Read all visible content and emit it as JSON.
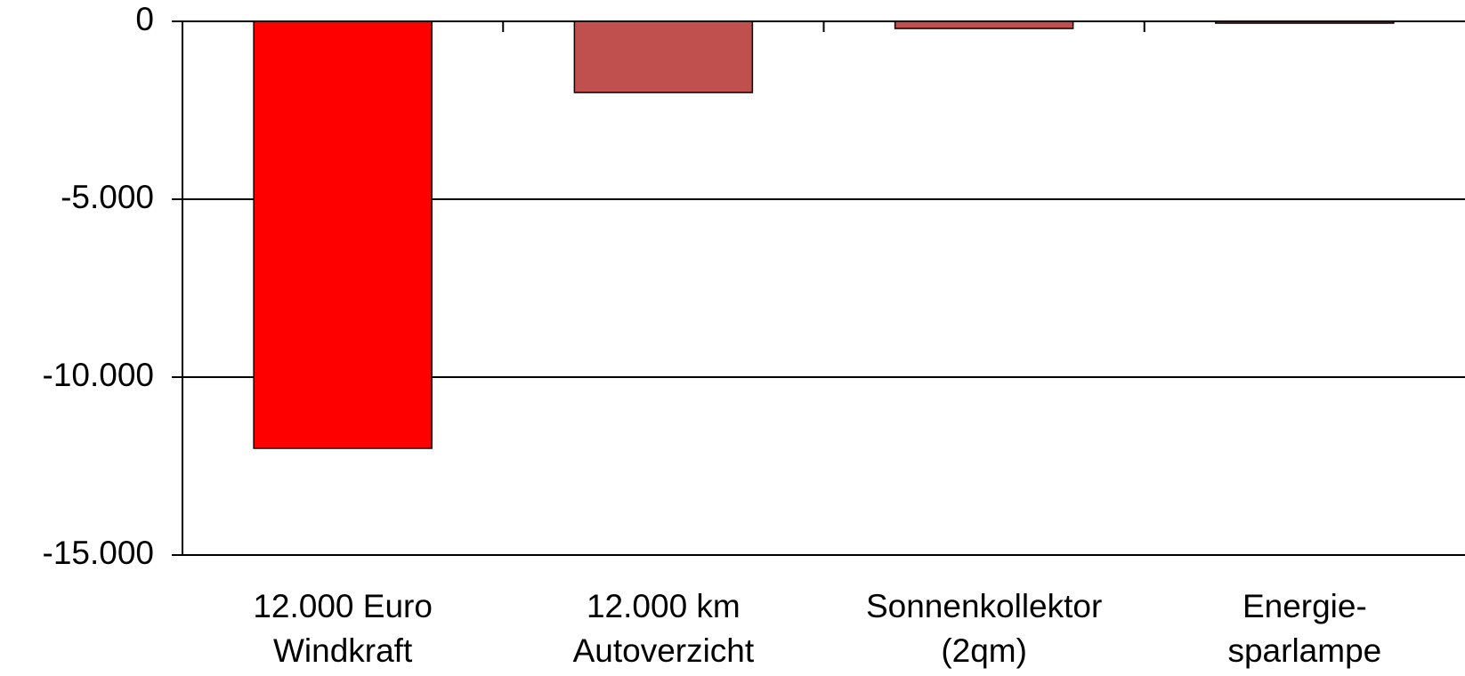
{
  "chart_data": {
    "type": "bar",
    "categories": [
      [
        "12.000 Euro",
        "Windkraft"
      ],
      [
        "12.000 km",
        "Autoverzicht"
      ],
      [
        "Sonnenkollektor",
        "(2qm)"
      ],
      [
        "Energie-",
        "sparlampe"
      ]
    ],
    "values": [
      -12000,
      -2000,
      -200,
      -50
    ],
    "colors": [
      "#ff0000",
      "#c0504d",
      "#c0504d",
      "#c0504d"
    ],
    "ylim": [
      -15000,
      0
    ],
    "yticks": [
      0,
      {
        "value": -5000,
        "label": "-5.000"
      },
      {
        "value": -10000,
        "label": "-10.000"
      },
      {
        "value": -15000,
        "label": "-15.000"
      }
    ],
    "grid": true
  }
}
